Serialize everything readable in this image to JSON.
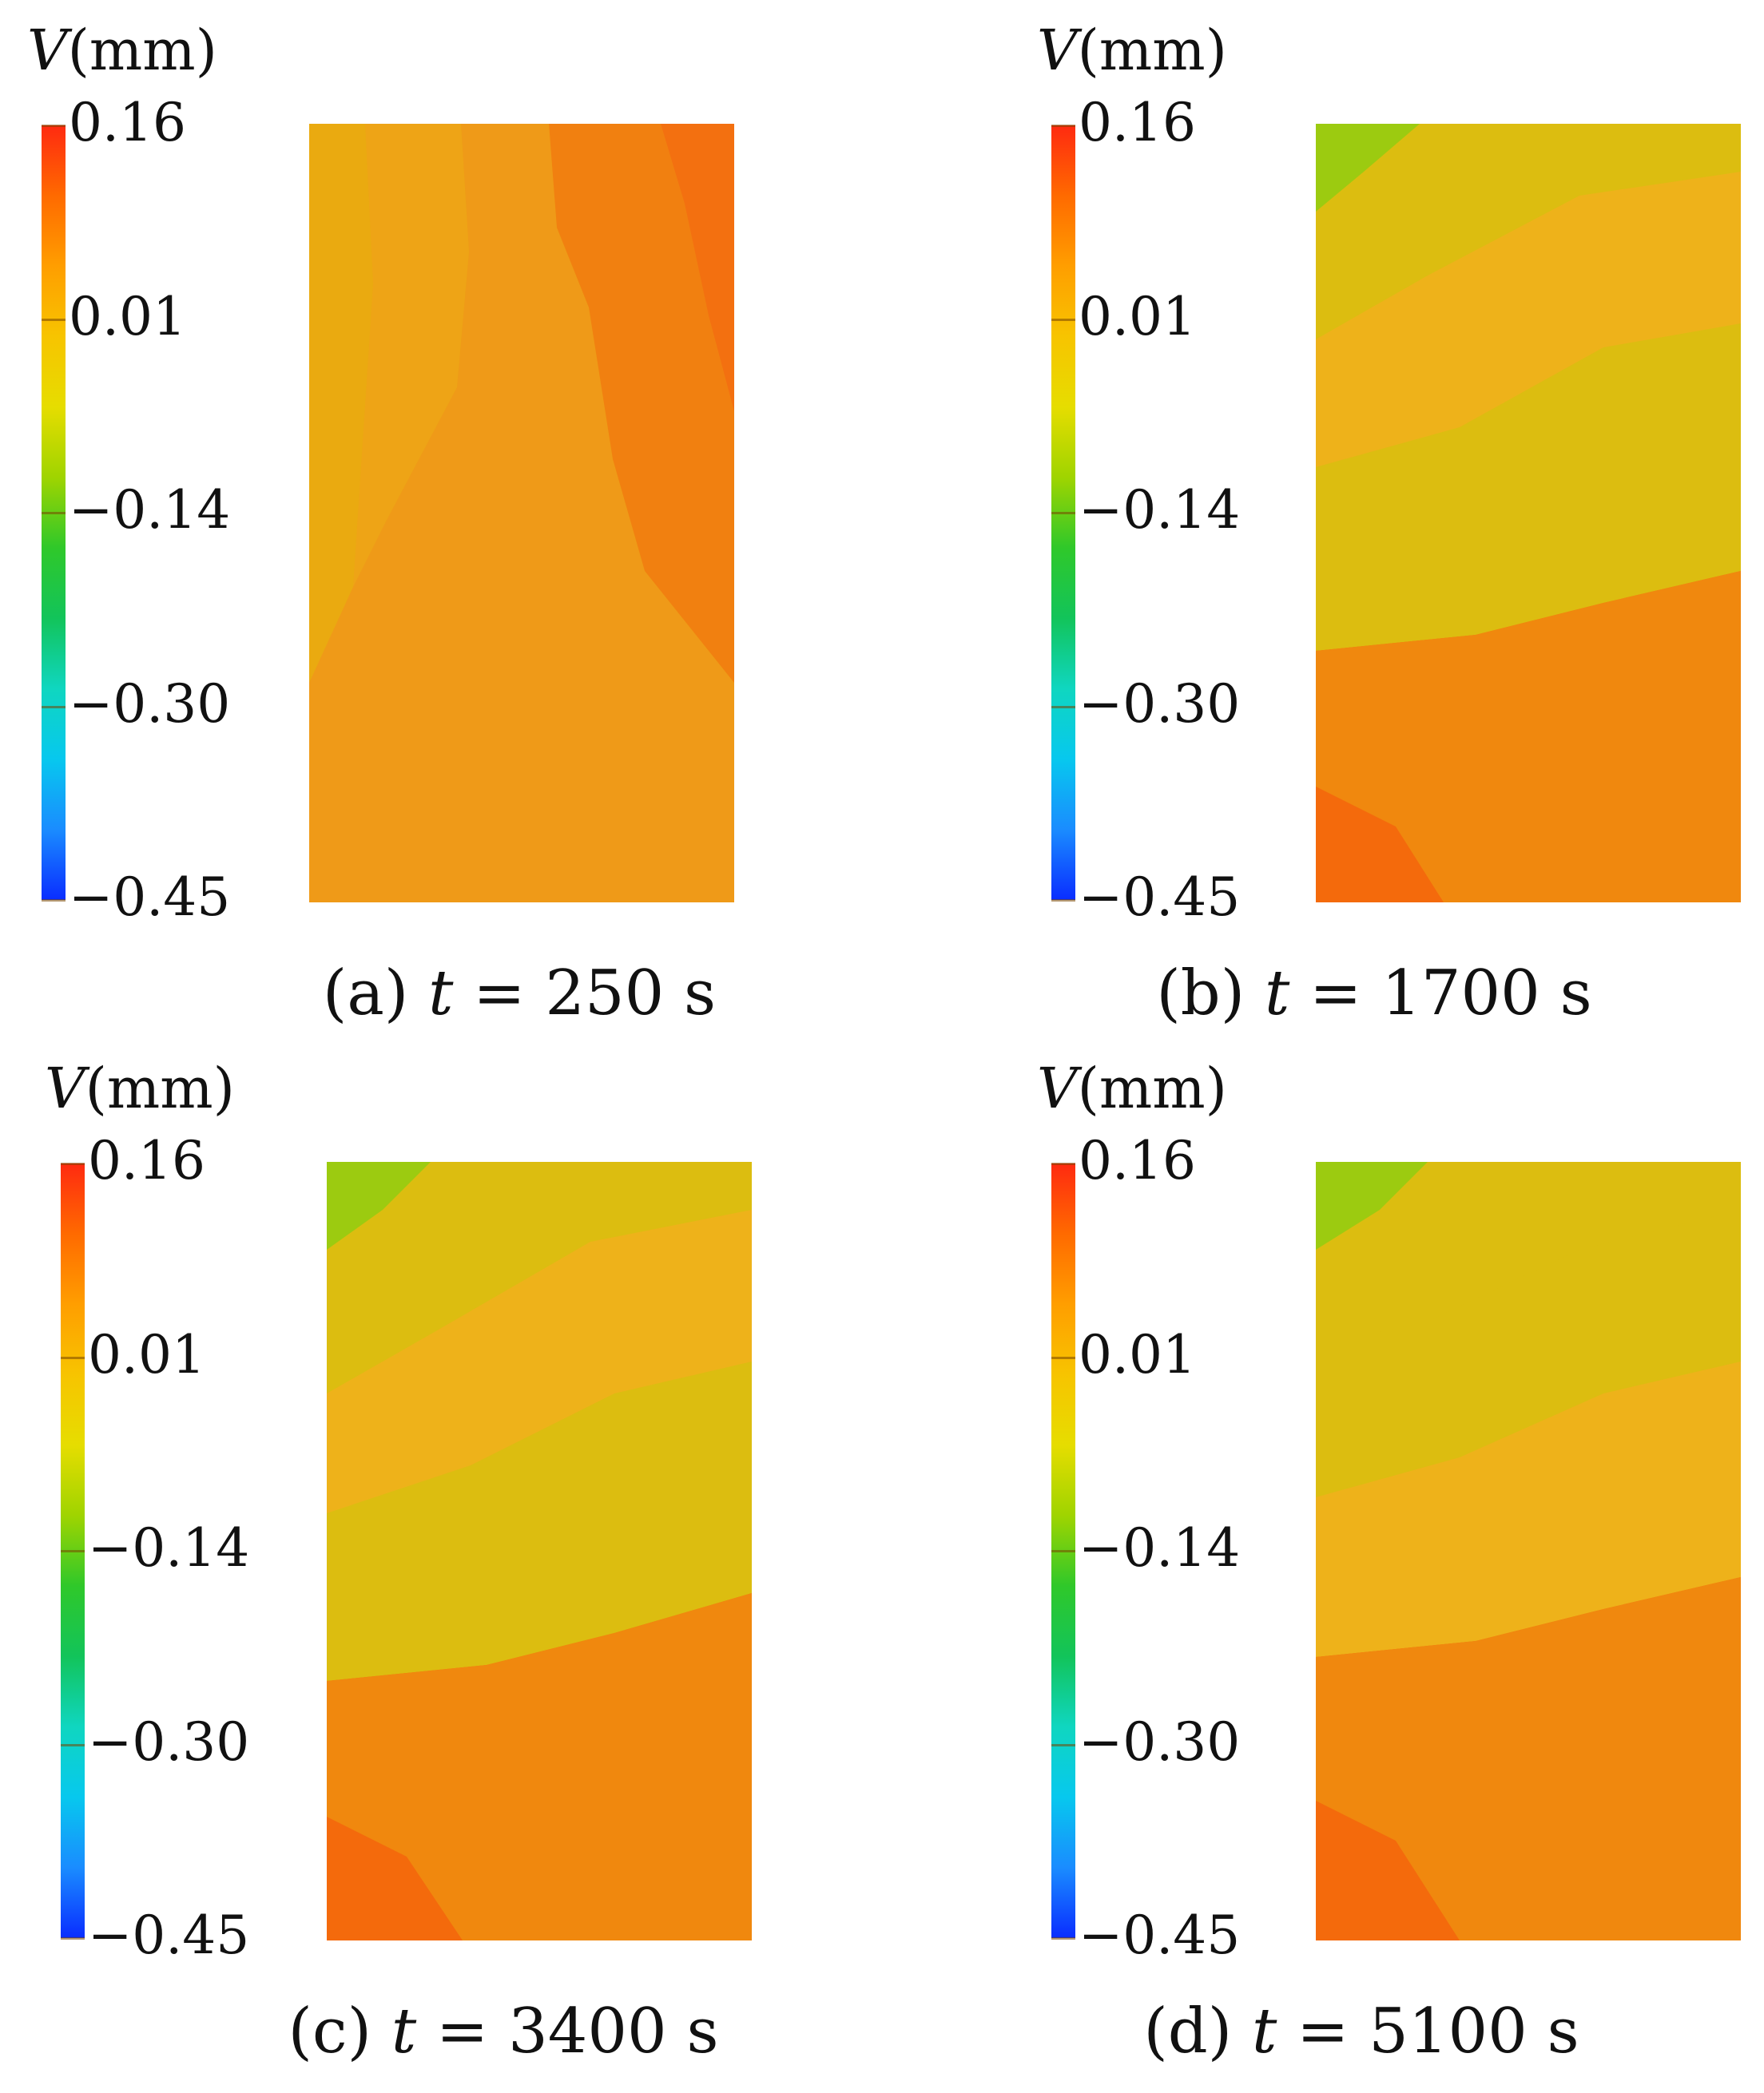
{
  "colorbar": {
    "label_var": "V",
    "label_unit": "(mm)",
    "ticks": [
      "0.16",
      "0.01",
      "−0.14",
      "−0.30",
      "−0.45"
    ],
    "range": [
      -0.45,
      0.16
    ],
    "colors": [
      "#ff2a10",
      "#ff6a00",
      "#ff9e00",
      "#f7c400",
      "#e6dd00",
      "#9fd400",
      "#2fc82a",
      "#12c45a",
      "#0fd6c0",
      "#07c8ee",
      "#1a8cff",
      "#0a2dff"
    ]
  },
  "chart_data": [
    {
      "type": "heatmap",
      "panel_label": "(a)",
      "time_var": "t",
      "time_text": "= 250 s",
      "time_s": 250,
      "quantity": "V (mm)",
      "field_colors": [
        "#eaaa10",
        "#eea416",
        "#ef9a18",
        "#f18010"
      ]
    },
    {
      "type": "heatmap",
      "panel_label": "(b)",
      "time_var": "t",
      "time_text": "= 1700 s",
      "time_s": 1700,
      "quantity": "V (mm)",
      "field_colors": [
        "#9ccb10",
        "#dcbd10",
        "#eeb21a",
        "#ef9a16",
        "#f0880e",
        "#f46a0c"
      ]
    },
    {
      "type": "heatmap",
      "panel_label": "(c)",
      "time_var": "t",
      "time_text": "= 3400 s",
      "time_s": 3400,
      "quantity": "V (mm)",
      "field_colors": [
        "#9ccb10",
        "#dcbd10",
        "#eeb21a",
        "#ef9a16",
        "#f0880e",
        "#f46a0c"
      ]
    },
    {
      "type": "heatmap",
      "panel_label": "(d)",
      "time_var": "t",
      "time_text": "= 5100 s",
      "time_s": 5100,
      "quantity": "V (mm)",
      "field_colors": [
        "#9ccb10",
        "#dcbd10",
        "#eeb21a",
        "#ef9a16",
        "#f0880e",
        "#f46a0c"
      ]
    }
  ]
}
